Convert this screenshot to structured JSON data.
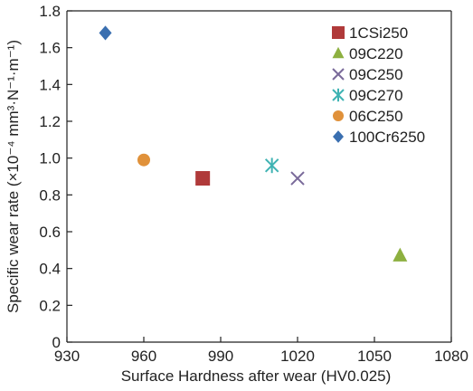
{
  "chart_data": {
    "type": "scatter",
    "xlabel": "Surface Hardness after wear (HV0.025)",
    "ylabel": "Specific wear rate (×10⁻⁴ mm³·N⁻¹·m⁻¹)",
    "xlim": [
      930,
      1080
    ],
    "ylim": [
      0,
      1.8
    ],
    "xticks": [
      "930",
      "960",
      "990",
      "1020",
      "1050",
      "1080"
    ],
    "yticks": [
      "0",
      "0.2",
      "0.4",
      "0.6",
      "0.8",
      "1.0",
      "1.2",
      "1.4",
      "1.6",
      "1.8"
    ],
    "grid": false,
    "legend_position": "top-right",
    "series": [
      {
        "name": "1CSi250",
        "marker": "square",
        "color": "#b03a3a",
        "x": [
          983
        ],
        "y": [
          0.89
        ]
      },
      {
        "name": "09C220",
        "marker": "triangle",
        "color": "#8db040",
        "x": [
          1060
        ],
        "y": [
          0.47
        ]
      },
      {
        "name": "09C250",
        "marker": "x",
        "color": "#7a6a9a",
        "x": [
          1020
        ],
        "y": [
          0.89
        ]
      },
      {
        "name": "09C270",
        "marker": "star",
        "color": "#3fb3b3",
        "x": [
          1010
        ],
        "y": [
          0.96
        ]
      },
      {
        "name": "06C250",
        "marker": "circle",
        "color": "#e0913a",
        "x": [
          960
        ],
        "y": [
          0.99
        ]
      },
      {
        "name": "100Cr6250",
        "marker": "diamond",
        "color": "#3a6fb0",
        "x": [
          945
        ],
        "y": [
          1.68
        ]
      }
    ]
  }
}
